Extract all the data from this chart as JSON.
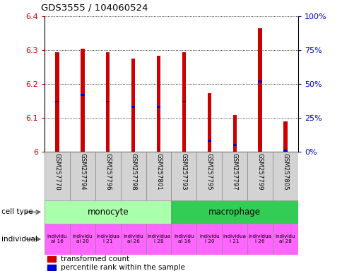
{
  "title": "GDS3555 / 104060524",
  "samples": [
    "GSM257770",
    "GSM257794",
    "GSM257796",
    "GSM257798",
    "GSM257801",
    "GSM257793",
    "GSM257795",
    "GSM257797",
    "GSM257799",
    "GSM257805"
  ],
  "red_values": [
    6.293,
    6.305,
    6.293,
    6.275,
    6.283,
    6.293,
    6.173,
    6.108,
    6.365,
    6.09
  ],
  "blue_values_pct": [
    37,
    42,
    37,
    33,
    33,
    37,
    8,
    5,
    52,
    1
  ],
  "ylim_left": [
    6.0,
    6.4
  ],
  "ylim_right": [
    0,
    100
  ],
  "yticks_left": [
    6.0,
    6.1,
    6.2,
    6.3,
    6.4
  ],
  "yticks_right": [
    0,
    25,
    50,
    75,
    100
  ],
  "ytick_right_labels": [
    "0%",
    "25%",
    "50%",
    "75%",
    "100%"
  ],
  "cell_types": [
    {
      "label": "monocyte",
      "start": 0,
      "end": 5,
      "color": "#AAFFAA"
    },
    {
      "label": "macrophage",
      "start": 5,
      "end": 10,
      "color": "#33CC55"
    }
  ],
  "ind_labels": [
    "individu\nal 16",
    "individu\nal 20",
    "individua\nl 21",
    "individu\nal 26",
    "individua\nl 28",
    "individu\nal 16",
    "individu\nl 20",
    "individua\nl 21",
    "individua\nl 26",
    "individu\nal 28"
  ],
  "bar_width": 0.15,
  "red_color": "#CC0000",
  "blue_color": "#0000CC",
  "label_color_left": "#CC0000",
  "label_color_right": "#0000CC",
  "sample_bg": "#D3D3D3",
  "ind_color": "#FF66FF"
}
